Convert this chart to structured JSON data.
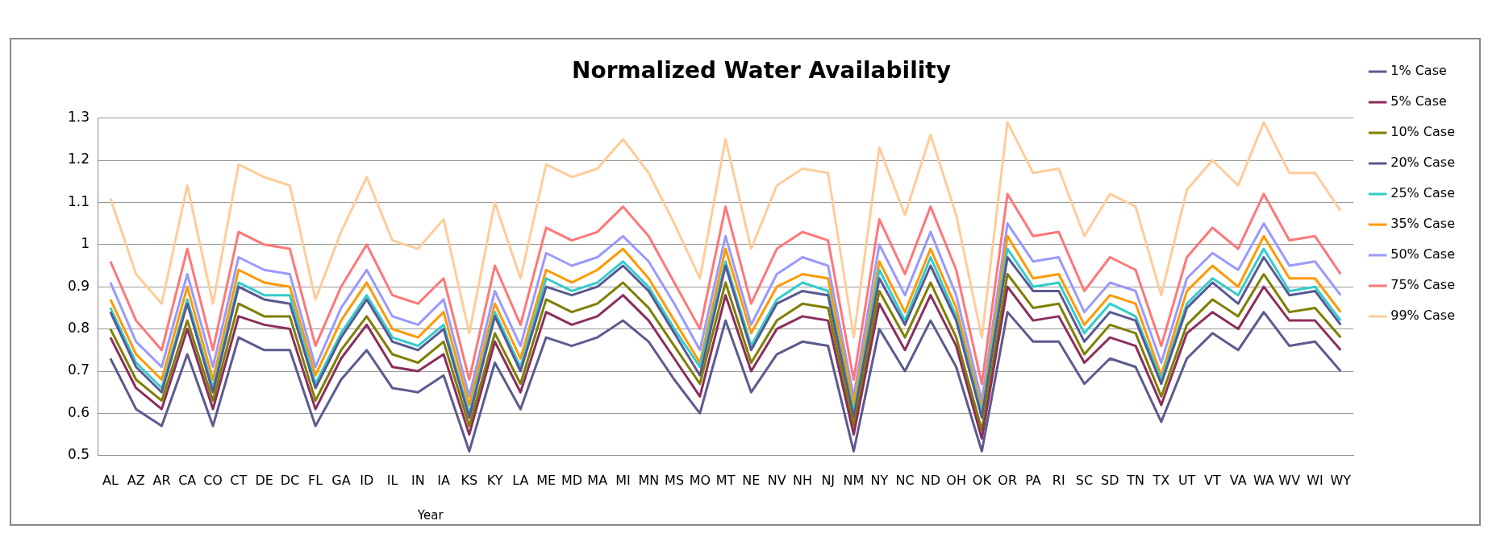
{
  "chart_data": {
    "type": "line",
    "title": "Normalized Water Availability",
    "xlabel": "Year",
    "categories": [
      "AL",
      "AZ",
      "AR",
      "CA",
      "CO",
      "CT",
      "DE",
      "DC",
      "FL",
      "GA",
      "ID",
      "IL",
      "IN",
      "IA",
      "KS",
      "KY",
      "LA",
      "ME",
      "MD",
      "MA",
      "MI",
      "MN",
      "MS",
      "MO",
      "MT",
      "NE",
      "NV",
      "NH",
      "NJ",
      "NM",
      "NY",
      "NC",
      "ND",
      "OH",
      "OK",
      "OR",
      "PA",
      "RI",
      "SC",
      "SD",
      "TN",
      "TX",
      "UT",
      "VT",
      "VA",
      "WA",
      "WV",
      "WI",
      "WY"
    ],
    "series": [
      {
        "name": "1% Case",
        "color": "#5b5b8f",
        "values": [
          0.73,
          0.61,
          0.57,
          0.74,
          0.57,
          0.78,
          0.75,
          0.75,
          0.57,
          0.68,
          0.75,
          0.66,
          0.65,
          0.69,
          0.51,
          0.72,
          0.61,
          0.78,
          0.76,
          0.78,
          0.82,
          0.77,
          0.68,
          0.6,
          0.82,
          0.65,
          0.74,
          0.77,
          0.76,
          0.51,
          0.8,
          0.7,
          0.82,
          0.71,
          0.51,
          0.84,
          0.77,
          0.77,
          0.67,
          0.73,
          0.71,
          0.58,
          0.73,
          0.79,
          0.75,
          0.84,
          0.76,
          0.77,
          0.7
        ]
      },
      {
        "name": "5% Case",
        "color": "#8b2e5c",
        "values": [
          0.78,
          0.66,
          0.61,
          0.8,
          0.61,
          0.83,
          0.81,
          0.8,
          0.61,
          0.73,
          0.81,
          0.71,
          0.7,
          0.74,
          0.55,
          0.77,
          0.65,
          0.84,
          0.81,
          0.83,
          0.88,
          0.82,
          0.73,
          0.64,
          0.88,
          0.7,
          0.8,
          0.83,
          0.82,
          0.55,
          0.86,
          0.75,
          0.88,
          0.76,
          0.54,
          0.9,
          0.82,
          0.83,
          0.72,
          0.78,
          0.76,
          0.62,
          0.79,
          0.84,
          0.8,
          0.9,
          0.82,
          0.82,
          0.75
        ]
      },
      {
        "name": "10% Case",
        "color": "#7f7f00",
        "values": [
          0.8,
          0.68,
          0.63,
          0.82,
          0.63,
          0.86,
          0.83,
          0.83,
          0.63,
          0.75,
          0.83,
          0.74,
          0.72,
          0.77,
          0.57,
          0.79,
          0.67,
          0.87,
          0.84,
          0.86,
          0.91,
          0.85,
          0.76,
          0.67,
          0.91,
          0.72,
          0.82,
          0.86,
          0.85,
          0.57,
          0.89,
          0.78,
          0.91,
          0.78,
          0.56,
          0.93,
          0.85,
          0.86,
          0.74,
          0.81,
          0.79,
          0.64,
          0.81,
          0.87,
          0.83,
          0.93,
          0.84,
          0.85,
          0.78
        ]
      },
      {
        "name": "20% Case",
        "color": "#585892",
        "values": [
          0.84,
          0.71,
          0.65,
          0.86,
          0.65,
          0.9,
          0.87,
          0.86,
          0.66,
          0.78,
          0.87,
          0.77,
          0.75,
          0.8,
          0.59,
          0.83,
          0.7,
          0.9,
          0.88,
          0.9,
          0.95,
          0.89,
          0.79,
          0.69,
          0.95,
          0.75,
          0.86,
          0.89,
          0.88,
          0.59,
          0.92,
          0.81,
          0.95,
          0.82,
          0.59,
          0.97,
          0.89,
          0.89,
          0.77,
          0.84,
          0.82,
          0.67,
          0.85,
          0.91,
          0.86,
          0.97,
          0.88,
          0.89,
          0.81
        ]
      },
      {
        "name": "25% Case",
        "color": "#33cccc",
        "values": [
          0.85,
          0.72,
          0.66,
          0.87,
          0.66,
          0.91,
          0.88,
          0.88,
          0.67,
          0.79,
          0.88,
          0.78,
          0.76,
          0.81,
          0.6,
          0.84,
          0.71,
          0.92,
          0.89,
          0.91,
          0.96,
          0.9,
          0.8,
          0.71,
          0.96,
          0.76,
          0.87,
          0.91,
          0.89,
          0.6,
          0.94,
          0.82,
          0.97,
          0.83,
          0.6,
          0.99,
          0.9,
          0.91,
          0.79,
          0.86,
          0.83,
          0.68,
          0.86,
          0.92,
          0.88,
          0.99,
          0.89,
          0.9,
          0.82
        ]
      },
      {
        "name": "35% Case",
        "color": "#ff9900",
        "values": [
          0.87,
          0.74,
          0.68,
          0.9,
          0.68,
          0.94,
          0.91,
          0.9,
          0.69,
          0.82,
          0.91,
          0.8,
          0.78,
          0.84,
          0.62,
          0.86,
          0.73,
          0.94,
          0.91,
          0.94,
          0.99,
          0.92,
          0.82,
          0.72,
          0.99,
          0.79,
          0.9,
          0.93,
          0.92,
          0.62,
          0.96,
          0.84,
          0.99,
          0.85,
          0.61,
          1.02,
          0.92,
          0.93,
          0.81,
          0.88,
          0.86,
          0.69,
          0.89,
          0.95,
          0.9,
          1.02,
          0.92,
          0.92,
          0.84
        ]
      },
      {
        "name": "50% Case",
        "color": "#9999ff",
        "values": [
          0.91,
          0.77,
          0.71,
          0.93,
          0.71,
          0.97,
          0.94,
          0.93,
          0.71,
          0.85,
          0.94,
          0.83,
          0.81,
          0.87,
          0.64,
          0.89,
          0.76,
          0.98,
          0.95,
          0.97,
          1.02,
          0.96,
          0.86,
          0.75,
          1.02,
          0.81,
          0.93,
          0.97,
          0.95,
          0.64,
          1.0,
          0.88,
          1.03,
          0.88,
          0.63,
          1.05,
          0.96,
          0.97,
          0.84,
          0.91,
          0.89,
          0.72,
          0.92,
          0.98,
          0.94,
          1.05,
          0.95,
          0.96,
          0.88
        ]
      },
      {
        "name": "75% Case",
        "color": "#ff7777",
        "values": [
          0.96,
          0.82,
          0.75,
          0.99,
          0.75,
          1.03,
          1.0,
          0.99,
          0.76,
          0.9,
          1.0,
          0.88,
          0.86,
          0.92,
          0.68,
          0.95,
          0.81,
          1.04,
          1.01,
          1.03,
          1.09,
          1.02,
          0.91,
          0.8,
          1.09,
          0.86,
          0.99,
          1.03,
          1.01,
          0.68,
          1.06,
          0.93,
          1.09,
          0.94,
          0.67,
          1.12,
          1.02,
          1.03,
          0.89,
          0.97,
          0.94,
          0.76,
          0.97,
          1.04,
          0.99,
          1.12,
          1.01,
          1.02,
          0.93
        ]
      },
      {
        "name": "99% Case",
        "color": "#ffcc99",
        "values": [
          1.11,
          0.93,
          0.86,
          1.14,
          0.86,
          1.19,
          1.16,
          1.14,
          0.87,
          1.03,
          1.16,
          1.01,
          0.99,
          1.06,
          0.79,
          1.1,
          0.92,
          1.19,
          1.16,
          1.18,
          1.25,
          1.17,
          1.05,
          0.92,
          1.25,
          0.99,
          1.14,
          1.18,
          1.17,
          0.78,
          1.23,
          1.07,
          1.26,
          1.07,
          0.78,
          1.29,
          1.17,
          1.18,
          1.02,
          1.12,
          1.09,
          0.88,
          1.13,
          1.2,
          1.14,
          1.29,
          1.17,
          1.17,
          1.08
        ]
      }
    ],
    "ylim": [
      0.5,
      1.3
    ],
    "yticks": [
      0.5,
      0.6,
      0.7,
      0.8,
      0.9,
      1,
      1.1,
      1.2,
      1.3
    ],
    "grid": "y",
    "legend": "right",
    "marker": "none",
    "line_style": "solid"
  }
}
